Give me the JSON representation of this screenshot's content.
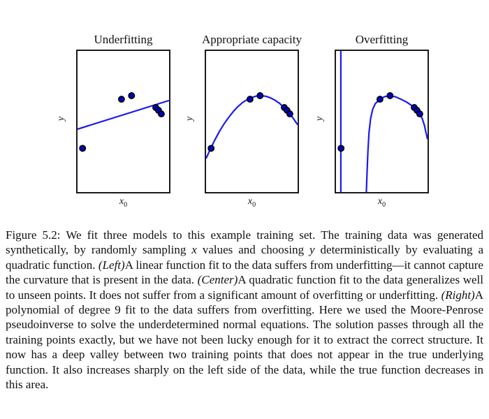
{
  "figure": {
    "panels": [
      {
        "title": "Underfitting",
        "ylabel": "y",
        "xlabel_base": "x",
        "xlabel_sub": "0"
      },
      {
        "title": "Appropriate capacity",
        "ylabel": "y",
        "xlabel_base": "x",
        "xlabel_sub": "0"
      },
      {
        "title": "Overfitting",
        "ylabel": "y",
        "xlabel_base": "x",
        "xlabel_sub": "0"
      }
    ]
  },
  "style": {
    "curve_color": "#1a1af0",
    "point_fill": "#0000c8",
    "point_edge": "#000000",
    "frame_color": "#1a1a1a"
  },
  "chart_data": [
    {
      "type": "scatter",
      "title": "Underfitting",
      "xlabel": "x_0",
      "ylabel": "y",
      "fit_model": "linear function",
      "axes_note": "axes unlabeled; coordinates normalized to [0,1], y measured upward",
      "legend": "off",
      "grid": "off",
      "points": [
        [
          0.055,
          0.31
        ],
        [
          0.48,
          0.658
        ],
        [
          0.59,
          0.683
        ],
        [
          0.855,
          0.599
        ],
        [
          0.885,
          0.579
        ],
        [
          0.915,
          0.554
        ]
      ],
      "curves": [
        [
          [
            0,
            0.446
          ],
          [
            1,
            0.649
          ]
        ]
      ]
    },
    {
      "type": "scatter",
      "title": "Appropriate capacity",
      "xlabel": "x_0",
      "ylabel": "y",
      "fit_model": "quadratic function",
      "axes_note": "axes unlabeled; coordinates normalized to [0,1], y measured upward",
      "legend": "off",
      "grid": "off",
      "points": [
        [
          0.055,
          0.31
        ],
        [
          0.48,
          0.658
        ],
        [
          0.59,
          0.683
        ],
        [
          0.855,
          0.599
        ],
        [
          0.885,
          0.579
        ],
        [
          0.915,
          0.554
        ]
      ],
      "curves": [
        [
          [
            0,
            0.238
          ],
          [
            0.05,
            0.31
          ],
          [
            0.1,
            0.375
          ],
          [
            0.15,
            0.434
          ],
          [
            0.2,
            0.486
          ],
          [
            0.25,
            0.532
          ],
          [
            0.3,
            0.573
          ],
          [
            0.35,
            0.607
          ],
          [
            0.4,
            0.635
          ],
          [
            0.45,
            0.656
          ],
          [
            0.5,
            0.671
          ],
          [
            0.55,
            0.68
          ],
          [
            0.6,
            0.683
          ],
          [
            0.65,
            0.679
          ],
          [
            0.7,
            0.669
          ],
          [
            0.75,
            0.652
          ],
          [
            0.8,
            0.63
          ],
          [
            0.85,
            0.6
          ],
          [
            0.9,
            0.566
          ],
          [
            0.95,
            0.525
          ],
          [
            1,
            0.477
          ]
        ]
      ]
    },
    {
      "type": "scatter",
      "title": "Overfitting",
      "xlabel": "x_0",
      "ylabel": "y",
      "fit_model": "polynomial of degree 9",
      "axes_note": "axes unlabeled; coordinates normalized to [0,1], y measured upward; curve leaves plot range in valley and on left spike",
      "legend": "off",
      "grid": "off",
      "points": [
        [
          0.055,
          0.31
        ],
        [
          0.48,
          0.658
        ],
        [
          0.59,
          0.683
        ],
        [
          0.855,
          0.599
        ],
        [
          0.885,
          0.579
        ],
        [
          0.915,
          0.554
        ]
      ],
      "curves": [
        [
          [
            0.053,
            0
          ],
          [
            0.053,
            1
          ]
        ],
        [
          [
            0.331,
            0
          ],
          [
            0.338,
            0.12
          ],
          [
            0.348,
            0.28
          ],
          [
            0.36,
            0.42
          ],
          [
            0.378,
            0.52
          ],
          [
            0.4,
            0.585
          ],
          [
            0.43,
            0.627
          ],
          [
            0.48,
            0.658
          ],
          [
            0.53,
            0.676
          ],
          [
            0.59,
            0.683
          ],
          [
            0.65,
            0.675
          ],
          [
            0.72,
            0.655
          ],
          [
            0.78,
            0.634
          ],
          [
            0.82,
            0.617
          ],
          [
            0.855,
            0.599
          ],
          [
            0.885,
            0.579
          ],
          [
            0.915,
            0.554
          ],
          [
            0.945,
            0.516
          ],
          [
            0.967,
            0.47
          ],
          [
            0.982,
            0.425
          ],
          [
            0.993,
            0.395
          ],
          [
            1,
            0.375
          ]
        ]
      ]
    }
  ],
  "caption": {
    "segments": [
      {
        "text": "Figure 5.2: We fit three models to this example training set. The training data was generated synthetically, by randomly sampling ",
        "italic": false
      },
      {
        "text": "x",
        "italic": true
      },
      {
        "text": " values and choosing ",
        "italic": false
      },
      {
        "text": "y",
        "italic": true
      },
      {
        "text": " deterministically by evaluating a quadratic function. ",
        "italic": false
      },
      {
        "text": "(Left)",
        "italic": true
      },
      {
        "text": "A linear function fit to the data suffers from underfitting—it cannot capture the curvature that is present in the data. ",
        "italic": false
      },
      {
        "text": "(Center)",
        "italic": true
      },
      {
        "text": "A quadratic function fit to the data generalizes well to unseen points. It does not suffer from a significant amount of overfitting or underfitting. ",
        "italic": false
      },
      {
        "text": "(Right)",
        "italic": true
      },
      {
        "text": "A polynomial of degree 9 fit to the data suffers from overfitting. Here we used the Moore-Penrose pseudoinverse to solve the underdetermined normal equations. The solution passes through all the training points exactly, but we have not been lucky enough for it to extract the correct structure. It now has a deep valley between two training points that does not appear in the true underlying function. It also increases sharply on the left side of the data, while the true function decreases in this area.",
        "italic": false
      }
    ]
  }
}
